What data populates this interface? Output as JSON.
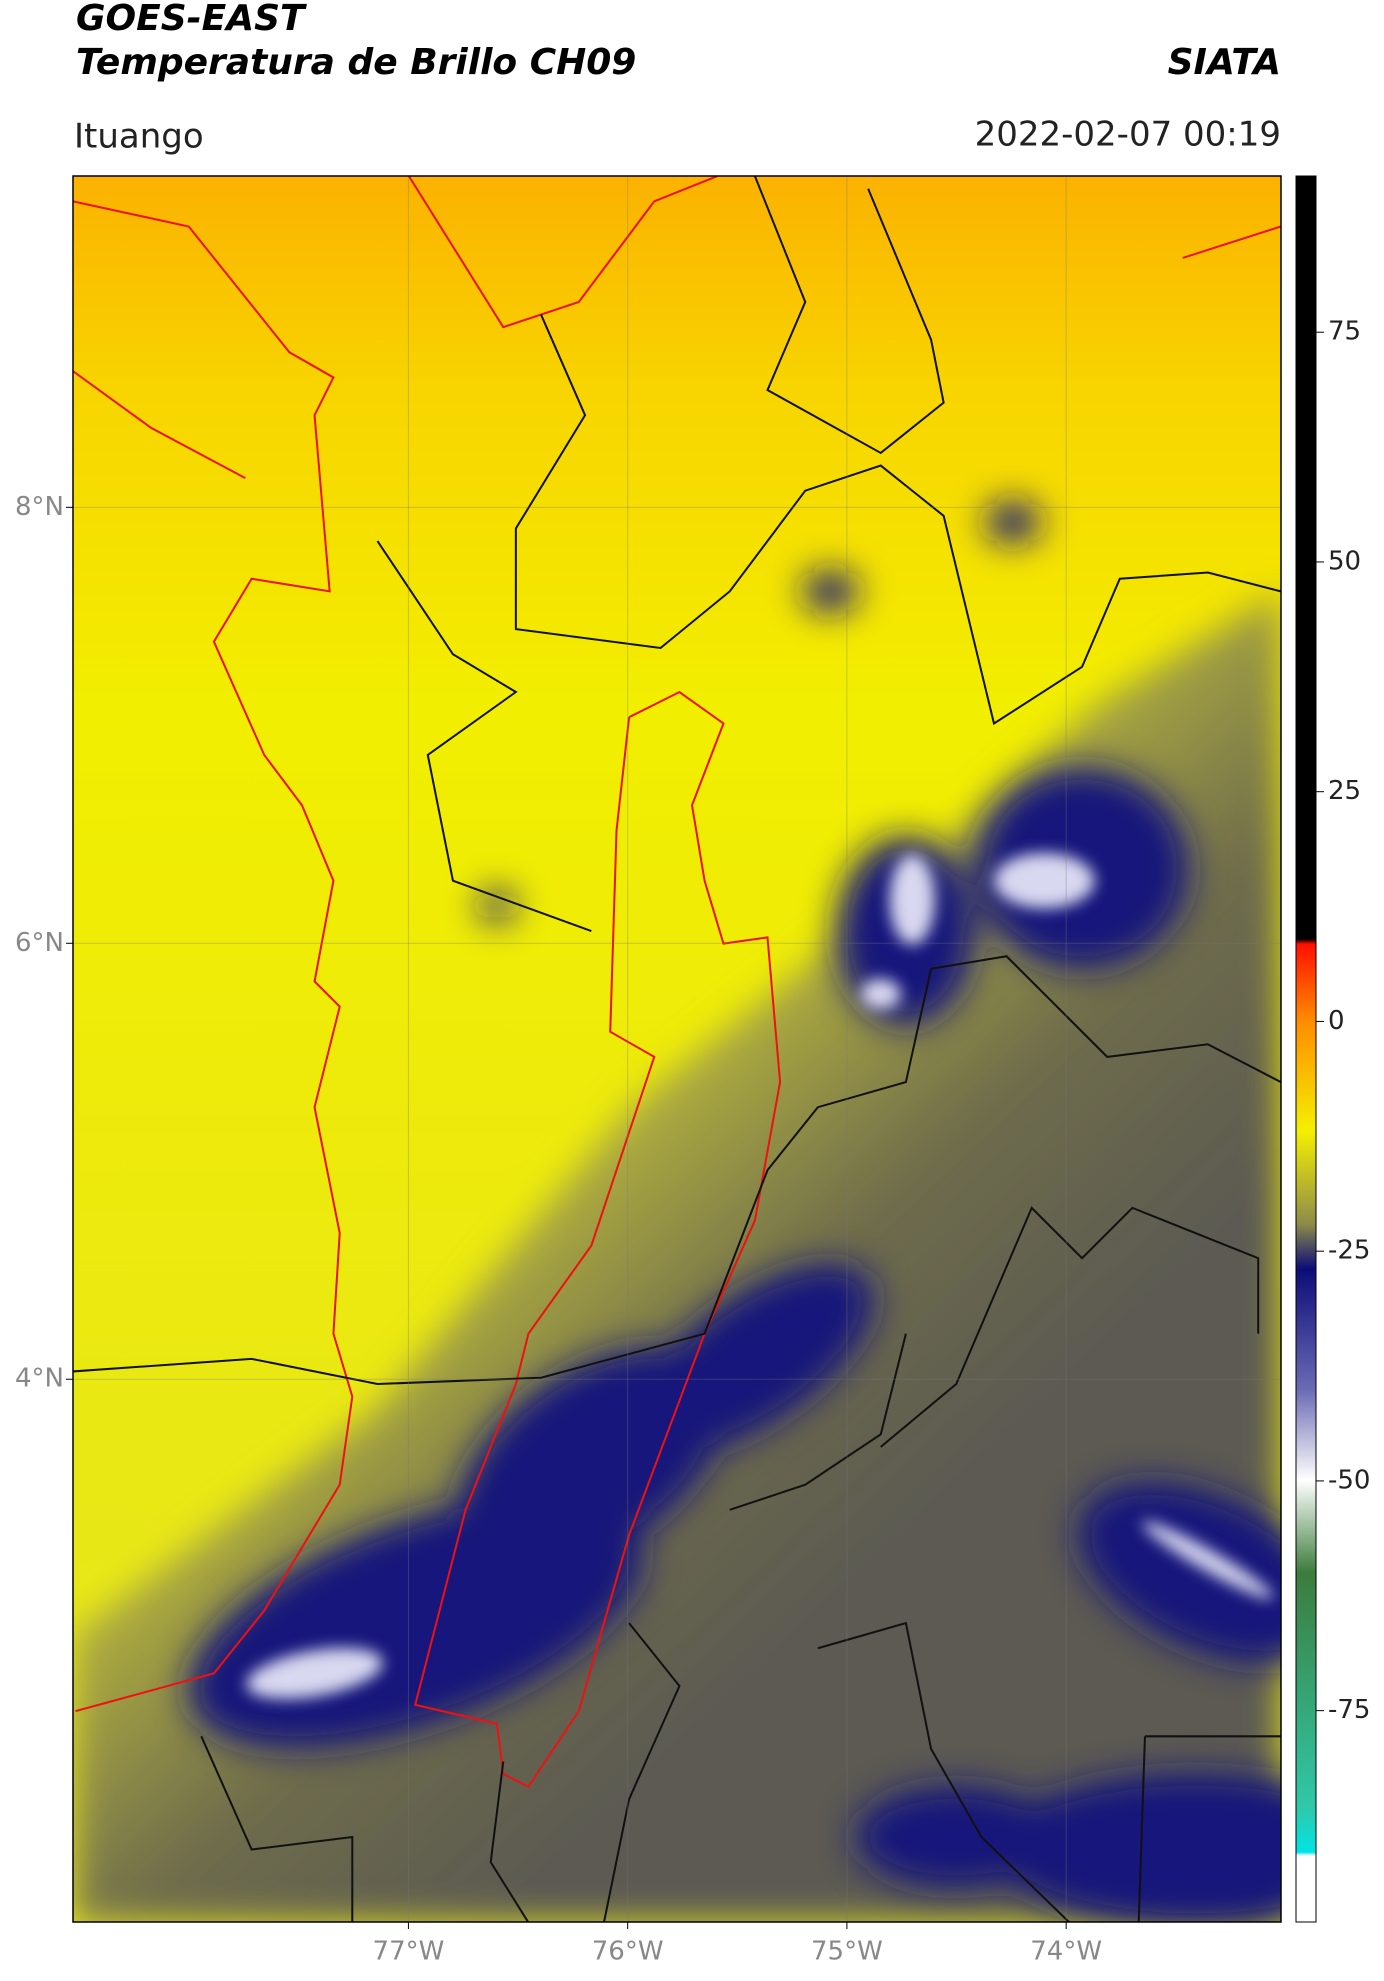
{
  "chart_data": {
    "type": "map",
    "title": "GOES-EAST",
    "subtitle": "Temperatura de Brillo CH09",
    "source": "SIATA",
    "region": "Ituango",
    "date": "2022-02-07 00:19",
    "xlim": [
      -78.53,
      -73.02
    ],
    "ylim": [
      1.51,
      9.52
    ],
    "xticks": [
      {
        "value": -77,
        "label": "77°W"
      },
      {
        "value": -76,
        "label": "76°W"
      },
      {
        "value": -75,
        "label": "75°W"
      },
      {
        "value": -74,
        "label": "74°W"
      }
    ],
    "yticks": [
      {
        "value": 8,
        "label": "8°N"
      },
      {
        "value": 6,
        "label": "6°N"
      },
      {
        "value": 4,
        "label": "4°N"
      }
    ],
    "grid": true,
    "colorbar": {
      "lim": [
        -98,
        92
      ],
      "ticks": [
        75,
        50,
        25,
        0,
        -25,
        -50,
        -75
      ]
    }
  }
}
